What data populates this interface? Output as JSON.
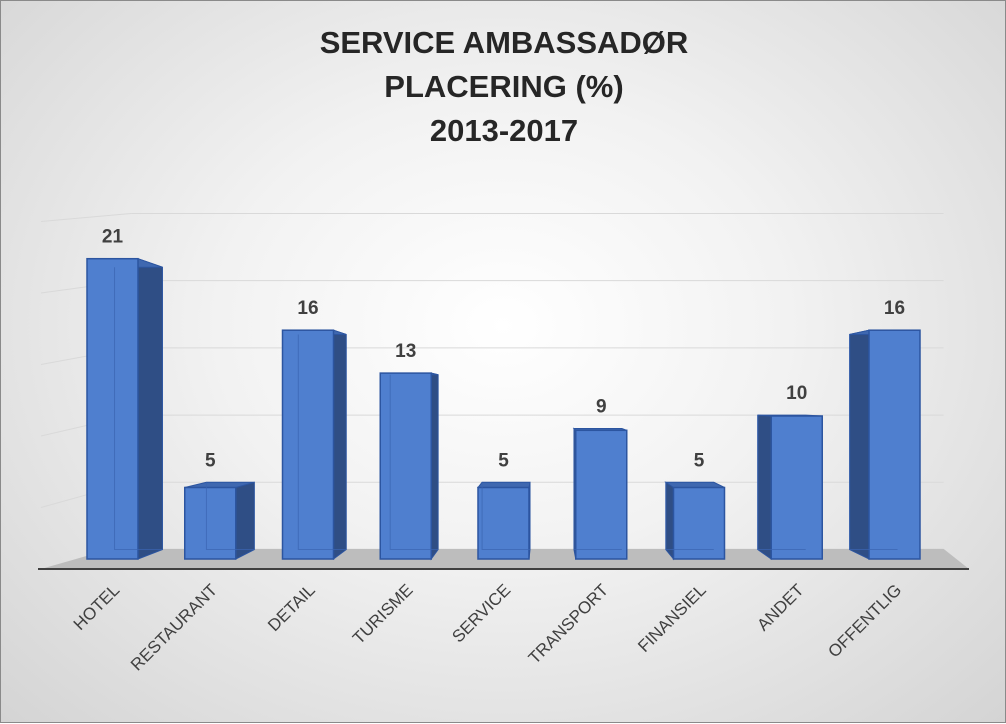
{
  "chart_data": {
    "type": "bar",
    "title": [
      "SERVICE AMBASSADØR",
      "PLACERING (%)",
      "2013-2017"
    ],
    "categories": [
      "HOTEL",
      "RESTAURANT",
      "DETAIL",
      "TURISME",
      "SERVICE",
      "TRANSPORT",
      "FINANSIEL",
      "ANDET",
      "OFFENTLIG"
    ],
    "values": [
      21,
      5,
      16,
      13,
      5,
      9,
      5,
      10,
      16
    ],
    "xlabel": "",
    "ylabel": "",
    "ylim": [
      0,
      25
    ],
    "grid": true,
    "legend": "none",
    "colors": {
      "front": "#4f7fcf",
      "side": "#2f4e85",
      "top": "#3f68b0",
      "edge": "#2c55a0"
    }
  }
}
